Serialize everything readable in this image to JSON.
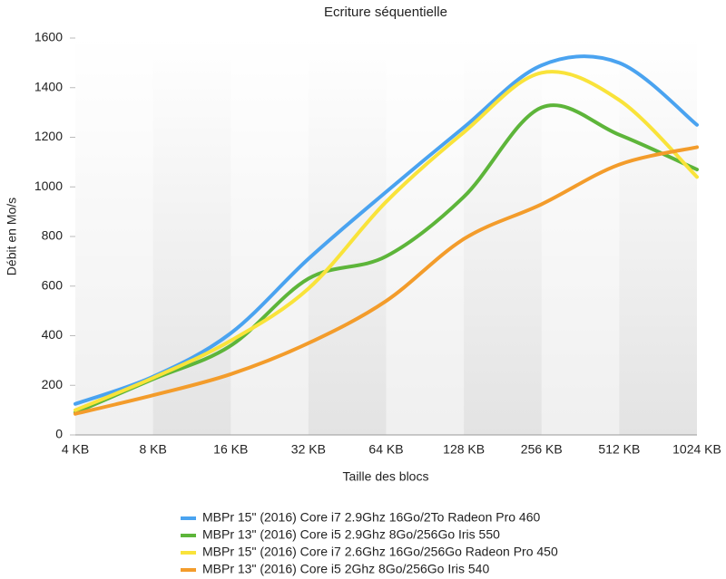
{
  "chart_data": {
    "type": "line",
    "title": "Ecriture séquentielle",
    "x_label": "Taille des blocs",
    "y_label": "Débit en Mo/s",
    "categories": [
      "4 KB",
      "8 KB",
      "16 KB",
      "32 KB",
      "64 KB",
      "128 KB",
      "256 KB",
      "512 KB",
      "1024 KB"
    ],
    "series": [
      {
        "name": "MBPr 15\" (2016) Core i7 2.9Ghz 16Go/2To Radeon Pro 460",
        "color": "#4aa3f0",
        "values": [
          125,
          235,
          410,
          710,
          980,
          1240,
          1490,
          1500,
          1250
        ]
      },
      {
        "name": "MBPr 13\" (2016) Core i5 2.9Ghz 8Go/256Go Iris 550",
        "color": "#5db53a",
        "values": [
          90,
          225,
          360,
          630,
          720,
          960,
          1320,
          1210,
          1070
        ]
      },
      {
        "name": "MBPr 15\" (2016) Core i7 2.6Ghz 16Go/256Go Radeon Pro 450",
        "color": "#f9e33a",
        "values": [
          100,
          230,
          380,
          590,
          940,
          1220,
          1460,
          1350,
          1040
        ]
      },
      {
        "name": "MBPr 13\" (2016) Core i5 2Ghz 8Go/256Go Iris 540",
        "color": "#f39c2b",
        "values": [
          85,
          160,
          245,
          370,
          540,
          790,
          930,
          1090,
          1160
        ]
      }
    ],
    "ylim": [
      0,
      1600
    ],
    "yticks": [
      0,
      200,
      400,
      600,
      800,
      1000,
      1200,
      1400,
      1600
    ],
    "legend": "bottom"
  }
}
